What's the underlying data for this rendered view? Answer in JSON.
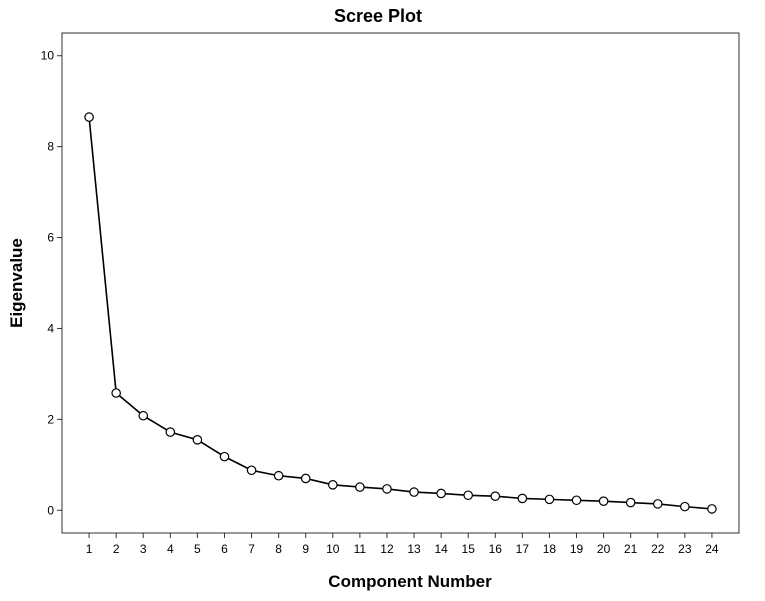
{
  "chart_data": {
    "type": "line",
    "title": "Scree Plot",
    "xlabel": "Component Number",
    "ylabel": "Eigenvalue",
    "x": [
      1,
      2,
      3,
      4,
      5,
      6,
      7,
      8,
      9,
      10,
      11,
      12,
      13,
      14,
      15,
      16,
      17,
      18,
      19,
      20,
      21,
      22,
      23,
      24
    ],
    "values": [
      8.65,
      2.58,
      2.08,
      1.72,
      1.55,
      1.18,
      0.88,
      0.76,
      0.7,
      0.56,
      0.51,
      0.47,
      0.4,
      0.37,
      0.33,
      0.31,
      0.26,
      0.24,
      0.22,
      0.2,
      0.17,
      0.14,
      0.08,
      0.03
    ],
    "xlim": [
      0,
      25
    ],
    "ylim": [
      -0.5,
      10.5
    ],
    "x_ticks": [
      1,
      2,
      3,
      4,
      5,
      6,
      7,
      8,
      9,
      10,
      11,
      12,
      13,
      14,
      15,
      16,
      17,
      18,
      19,
      20,
      21,
      22,
      23,
      24
    ],
    "y_ticks": [
      0,
      2,
      4,
      6,
      8,
      10
    ],
    "grid": false,
    "legend": "none",
    "colors": {
      "line": "#000000",
      "marker_fill": "#ffffff",
      "frame": "#333333"
    }
  }
}
